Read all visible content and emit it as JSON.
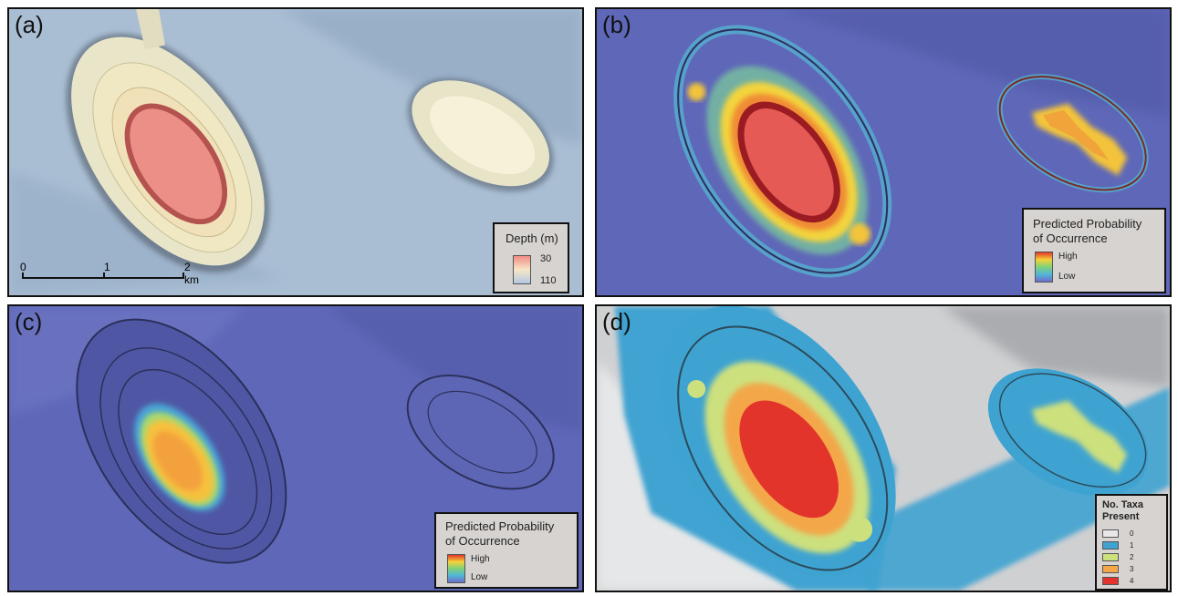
{
  "panels": {
    "a": {
      "label": "(a)",
      "legend": {
        "title": "Depth (m)",
        "max": "30",
        "min": "110",
        "ramp_colors": [
          "#f08d86",
          "#f6e6c6",
          "#b4c8e1"
        ]
      },
      "scalebar": {
        "ticks": [
          "0",
          "1",
          "2 km"
        ]
      }
    },
    "b": {
      "label": "(b)",
      "legend": {
        "title_line1": "Predicted Probability",
        "title_line2": "of Occurrence",
        "high": "High",
        "low": "Low",
        "ramp_colors": [
          "#e2372a",
          "#f5d23a",
          "#7fd17a",
          "#52b6d8",
          "#6f6ec8"
        ]
      }
    },
    "c": {
      "label": "(c)",
      "legend": {
        "title_line1": "Predicted Probability",
        "title_line2": "of Occurrence",
        "high": "High",
        "low": "Low",
        "ramp_colors": [
          "#e2372a",
          "#f5d23a",
          "#7fd17a",
          "#52b6d8",
          "#6f6ec8"
        ]
      }
    },
    "d": {
      "label": "(d)",
      "legend": {
        "title_line1": "No. Taxa",
        "title_line2": "Present",
        "classes": [
          {
            "label": "0",
            "color": "#e8e8e8"
          },
          {
            "label": "1",
            "color": "#3fa3d1"
          },
          {
            "label": "2",
            "color": "#cde07e"
          },
          {
            "label": "3",
            "color": "#f3a748"
          },
          {
            "label": "4",
            "color": "#e3342c"
          }
        ]
      }
    }
  },
  "colors": {
    "background_a": "#a9bed3",
    "background_bc": "#5f68b8",
    "background_d": "#cfd0d2",
    "probability_high": "#e2372a",
    "probability_low": "#6f6ec8"
  }
}
